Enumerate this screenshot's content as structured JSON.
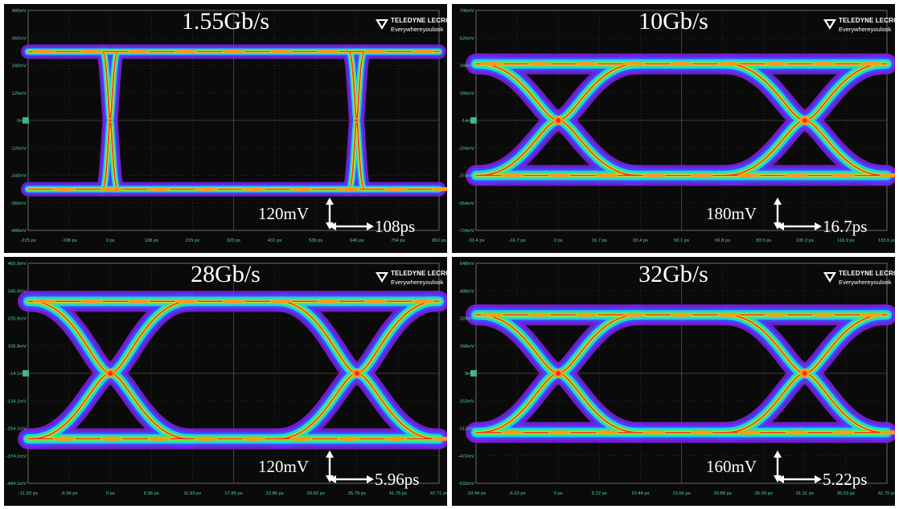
{
  "logo": {
    "brand": "TELEDYNE LECROY",
    "tagline": "Everywhereyoulook"
  },
  "colors": {
    "background": "#0a0a0a",
    "grid": "#4a4a4a",
    "axis_labels": "#52d39a",
    "marker": "#3fae8f",
    "density": [
      "#7a1fe0",
      "#3a4cff",
      "#22d4e6",
      "#4cea5a",
      "#f2ee3c",
      "#ff9a1c",
      "#ff2a1a"
    ]
  },
  "chart_data": [
    {
      "type": "eye-diagram",
      "title": "1.55Gb/s",
      "y_ticks": [
        "480mV",
        "360mV",
        "240mV",
        "120mV",
        "0mV",
        "-120mV",
        "-240mV",
        "-360mV",
        "-480mV"
      ],
      "x_ticks": [
        "-215 ps",
        "-108 ps",
        "0 ps",
        "108 ps",
        "215 ps",
        "323 ps",
        "431 ps",
        "539 ps",
        "646 ps",
        "754 ps",
        "862 ps"
      ],
      "vertical_scale": "120mV",
      "horizontal_scale": "108ps",
      "levels_mV": {
        "high": 300,
        "low": -300,
        "crossing": 0
      },
      "crossings_ps": [
        0,
        646
      ]
    },
    {
      "type": "eye-diagram",
      "title": "10Gb/s",
      "y_ticks": [
        "706mV",
        "526mV",
        "346mV",
        "166mV",
        "-14mV",
        "-194mV",
        "-374mV",
        "-554mV",
        "-734mV"
      ],
      "x_ticks": [
        "-33.4 ps",
        "-16.7 ps",
        "0 ps",
        "16.7 ps",
        "33.4 ps",
        "50.1 ps",
        "66.8 ps",
        "83.5 ps",
        "100.2 ps",
        "116.9 ps",
        "133.6 ps"
      ],
      "vertical_scale": "180mV",
      "horizontal_scale": "16.7ps",
      "levels_mV": {
        "high": 356,
        "low": -374,
        "crossing": -14
      },
      "crossings_ps": [
        0,
        100.2
      ]
    },
    {
      "type": "eye-diagram",
      "title": "28Gb/s",
      "y_ticks": [
        "465.9mV",
        "345.9mV",
        "225.9mV",
        "105.9mV",
        "-14.1mV",
        "-134.1mV",
        "-254.1mV",
        "-374.1mV",
        "-494.1mV"
      ],
      "x_ticks": [
        "-11.93 ps",
        "-5.96 ps",
        "0 ps",
        "5.96 ps",
        "11.93 ps",
        "17.89 ps",
        "23.86 ps",
        "29.82 ps",
        "35.79 ps",
        "41.75 ps",
        "47.71 ps"
      ],
      "vertical_scale": "120mV",
      "horizontal_scale": "5.96ps",
      "levels_mV": {
        "high": 300,
        "low": -300,
        "crossing": -14.1
      },
      "crossings_ps": [
        0,
        35.79
      ]
    },
    {
      "type": "eye-diagram",
      "title": "32Gb/s",
      "y_ticks": [
        "648mV",
        "488mV",
        "328mV",
        "168mV",
        "8mV",
        "-152mV",
        "-312mV",
        "-472mV",
        "-632mV"
      ],
      "x_ticks": [
        "-10.44 ps",
        "-5.22 ps",
        "0 ps",
        "5.22 ps",
        "10.44 ps",
        "15.66 ps",
        "20.88 ps",
        "26.09 ps",
        "31.31 ps",
        "36.53 ps",
        "41.75 ps"
      ],
      "vertical_scale": "160mV",
      "horizontal_scale": "5.22ps",
      "levels_mV": {
        "high": 348,
        "low": -336,
        "crossing": 8
      },
      "crossings_ps": [
        0,
        31.31
      ]
    }
  ]
}
